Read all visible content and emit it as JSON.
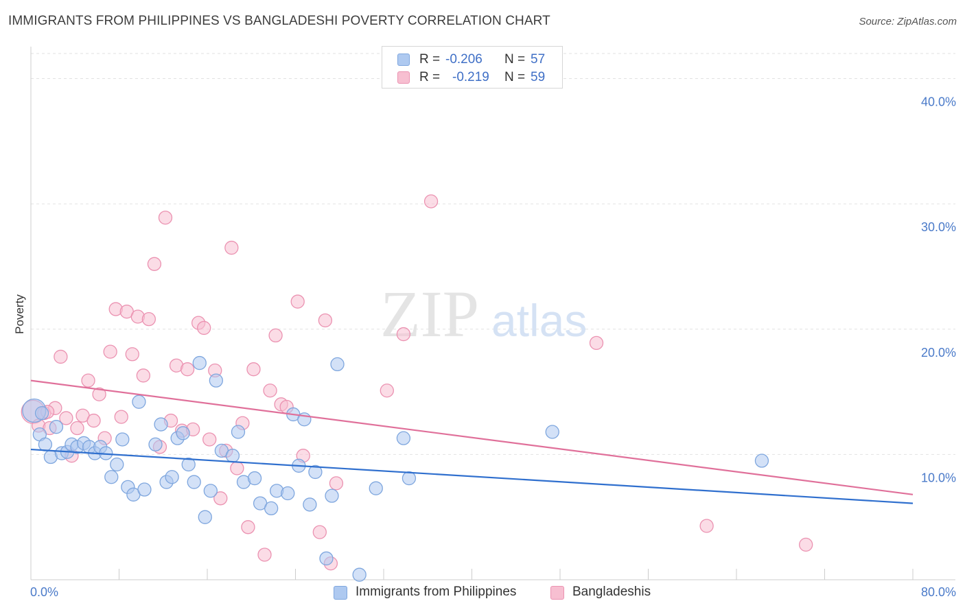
{
  "header": {
    "title": "IMMIGRANTS FROM PHILIPPINES VS BANGLADESHI POVERTY CORRELATION CHART",
    "source": "Source: ZipAtlas.com"
  },
  "watermark": {
    "zip": "ZIP",
    "atlas": "atlas"
  },
  "legend": {
    "rows": [
      {
        "r_label": "R =",
        "r_value": "-0.206",
        "n_label": "N =",
        "n_value": "57"
      },
      {
        "r_label": "R =",
        "r_value": "-0.219",
        "n_label": "N =",
        "n_value": "59"
      }
    ],
    "bottom": [
      {
        "label": "Immigrants from Philippines"
      },
      {
        "label": "Bangladeshis"
      }
    ]
  },
  "colors": {
    "blue_fill": "#aec9f0",
    "blue_stroke": "#7ea6de",
    "blue_line": "#2f6fce",
    "pink_fill": "#f7bfd1",
    "pink_stroke": "#eb92b1",
    "pink_line": "#e0709a",
    "axis_text": "#4a7ac9"
  },
  "chart_data": {
    "type": "scatter",
    "title": "IMMIGRANTS FROM PHILIPPINES VS BANGLADESHI POVERTY CORRELATION CHART",
    "ylabel": "Poverty",
    "xlabel": "",
    "xlim": [
      0,
      80
    ],
    "ylim": [
      0,
      42
    ],
    "x_tick_labels": [
      "0.0%",
      "80.0%"
    ],
    "y_ticks": [
      10,
      20,
      30,
      40
    ],
    "y_tick_labels": [
      "10.0%",
      "20.0%",
      "30.0%",
      "40.0%"
    ],
    "grid": "horizontal dashed",
    "legend_position": "top-center",
    "series": [
      {
        "name": "Immigrants from Philippines",
        "r": -0.206,
        "n": 57,
        "trend": {
          "x": [
            0,
            80
          ],
          "y": [
            10.4,
            6.1
          ]
        },
        "points": [
          {
            "x": 0.3,
            "y": 13.5,
            "big": true
          },
          {
            "x": 0.8,
            "y": 11.6
          },
          {
            "x": 1.3,
            "y": 10.8
          },
          {
            "x": 1.8,
            "y": 9.8
          },
          {
            "x": 2.3,
            "y": 12.2
          },
          {
            "x": 2.8,
            "y": 10.1
          },
          {
            "x": 3.3,
            "y": 10.2
          },
          {
            "x": 3.7,
            "y": 10.8
          },
          {
            "x": 4.2,
            "y": 10.6
          },
          {
            "x": 4.8,
            "y": 10.9
          },
          {
            "x": 5.3,
            "y": 10.6
          },
          {
            "x": 5.8,
            "y": 10.1
          },
          {
            "x": 6.3,
            "y": 10.6
          },
          {
            "x": 6.8,
            "y": 10.1
          },
          {
            "x": 7.3,
            "y": 8.2
          },
          {
            "x": 7.8,
            "y": 9.2
          },
          {
            "x": 8.3,
            "y": 11.2
          },
          {
            "x": 8.8,
            "y": 7.4
          },
          {
            "x": 9.3,
            "y": 6.8
          },
          {
            "x": 9.8,
            "y": 14.2
          },
          {
            "x": 10.3,
            "y": 7.2
          },
          {
            "x": 11.3,
            "y": 10.8
          },
          {
            "x": 11.8,
            "y": 12.4
          },
          {
            "x": 12.3,
            "y": 7.8
          },
          {
            "x": 12.8,
            "y": 8.2
          },
          {
            "x": 13.3,
            "y": 11.3
          },
          {
            "x": 13.8,
            "y": 11.7
          },
          {
            "x": 14.3,
            "y": 9.2
          },
          {
            "x": 14.8,
            "y": 7.8
          },
          {
            "x": 15.3,
            "y": 17.3
          },
          {
            "x": 15.8,
            "y": 5.0
          },
          {
            "x": 16.3,
            "y": 7.1
          },
          {
            "x": 16.8,
            "y": 15.9
          },
          {
            "x": 17.3,
            "y": 10.3
          },
          {
            "x": 18.3,
            "y": 9.9
          },
          {
            "x": 18.8,
            "y": 11.8
          },
          {
            "x": 19.3,
            "y": 7.8
          },
          {
            "x": 20.3,
            "y": 8.1
          },
          {
            "x": 20.8,
            "y": 6.1
          },
          {
            "x": 21.8,
            "y": 5.7
          },
          {
            "x": 22.3,
            "y": 7.1
          },
          {
            "x": 23.3,
            "y": 6.9
          },
          {
            "x": 23.8,
            "y": 13.2
          },
          {
            "x": 24.3,
            "y": 9.1
          },
          {
            "x": 24.8,
            "y": 12.8
          },
          {
            "x": 25.3,
            "y": 6.0
          },
          {
            "x": 25.8,
            "y": 8.6
          },
          {
            "x": 26.8,
            "y": 1.7
          },
          {
            "x": 27.3,
            "y": 6.7
          },
          {
            "x": 27.8,
            "y": 17.2
          },
          {
            "x": 29.8,
            "y": 0.4
          },
          {
            "x": 31.3,
            "y": 7.3
          },
          {
            "x": 33.8,
            "y": 11.3
          },
          {
            "x": 34.3,
            "y": 8.1
          },
          {
            "x": 47.3,
            "y": 11.8
          },
          {
            "x": 66.3,
            "y": 9.5
          },
          {
            "x": 1.0,
            "y": 13.3
          }
        ]
      },
      {
        "name": "Bangladeshis",
        "r": -0.219,
        "n": 59,
        "trend": {
          "x": [
            0,
            80
          ],
          "y": [
            15.9,
            6.8
          ]
        },
        "points": [
          {
            "x": 0.2,
            "y": 13.4,
            "big": true
          },
          {
            "x": 0.7,
            "y": 12.3
          },
          {
            "x": 1.2,
            "y": 13.3
          },
          {
            "x": 1.7,
            "y": 12.1
          },
          {
            "x": 2.2,
            "y": 13.7
          },
          {
            "x": 2.7,
            "y": 17.8
          },
          {
            "x": 3.2,
            "y": 12.9
          },
          {
            "x": 3.7,
            "y": 9.9
          },
          {
            "x": 4.2,
            "y": 12.1
          },
          {
            "x": 4.7,
            "y": 13.1
          },
          {
            "x": 5.2,
            "y": 15.9
          },
          {
            "x": 5.7,
            "y": 12.7
          },
          {
            "x": 6.2,
            "y": 14.8
          },
          {
            "x": 6.7,
            "y": 11.3
          },
          {
            "x": 7.2,
            "y": 18.2
          },
          {
            "x": 7.7,
            "y": 21.6
          },
          {
            "x": 8.2,
            "y": 13.0
          },
          {
            "x": 8.7,
            "y": 21.4
          },
          {
            "x": 9.2,
            "y": 18.0
          },
          {
            "x": 9.7,
            "y": 21.0
          },
          {
            "x": 10.2,
            "y": 16.3
          },
          {
            "x": 10.7,
            "y": 20.8
          },
          {
            "x": 11.2,
            "y": 25.2
          },
          {
            "x": 11.7,
            "y": 10.6
          },
          {
            "x": 12.2,
            "y": 28.9
          },
          {
            "x": 12.7,
            "y": 12.7
          },
          {
            "x": 13.2,
            "y": 17.1
          },
          {
            "x": 13.7,
            "y": 11.9
          },
          {
            "x": 14.2,
            "y": 16.8
          },
          {
            "x": 14.7,
            "y": 12.0
          },
          {
            "x": 15.2,
            "y": 20.5
          },
          {
            "x": 15.7,
            "y": 20.1
          },
          {
            "x": 16.2,
            "y": 11.2
          },
          {
            "x": 16.7,
            "y": 16.7
          },
          {
            "x": 17.2,
            "y": 6.5
          },
          {
            "x": 17.7,
            "y": 10.3
          },
          {
            "x": 18.2,
            "y": 26.5
          },
          {
            "x": 18.7,
            "y": 8.9
          },
          {
            "x": 19.2,
            "y": 12.5
          },
          {
            "x": 19.7,
            "y": 4.2
          },
          {
            "x": 20.2,
            "y": 16.8
          },
          {
            "x": 21.2,
            "y": 2.0
          },
          {
            "x": 21.7,
            "y": 15.1
          },
          {
            "x": 22.2,
            "y": 19.5
          },
          {
            "x": 22.7,
            "y": 14.0
          },
          {
            "x": 23.2,
            "y": 13.8
          },
          {
            "x": 24.2,
            "y": 22.2
          },
          {
            "x": 24.7,
            "y": 9.9
          },
          {
            "x": 26.2,
            "y": 3.8
          },
          {
            "x": 26.7,
            "y": 20.7
          },
          {
            "x": 27.2,
            "y": 1.3
          },
          {
            "x": 27.7,
            "y": 7.7
          },
          {
            "x": 32.3,
            "y": 15.1
          },
          {
            "x": 33.8,
            "y": 19.6
          },
          {
            "x": 36.3,
            "y": 30.2
          },
          {
            "x": 51.3,
            "y": 18.9
          },
          {
            "x": 61.3,
            "y": 4.3
          },
          {
            "x": 70.3,
            "y": 2.8
          },
          {
            "x": 1.5,
            "y": 13.4
          }
        ]
      }
    ]
  }
}
